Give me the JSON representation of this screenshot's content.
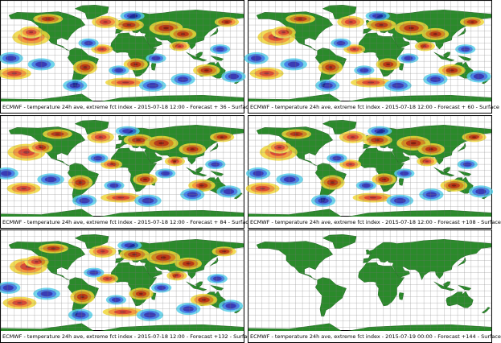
{
  "colors": {
    "land": "#2a8a2a",
    "ocean": "#ffffff",
    "grid": "#777777",
    "warm_weak": "#f0d83a",
    "warm_mid": "#f08a1e",
    "warm_strong": "#d42a12",
    "warm_extreme": "#8a0f0f",
    "cold_weak": "#58d0ea",
    "cold_mid": "#2a6ee6",
    "cold_strong": "#1a1aa8"
  },
  "panels": [
    {
      "caption": "ECMWF - temperature 24h ave, extreme fct index - 2015-07-18 12:00 - Forecast + 36 - Surface",
      "has_anomaly": true
    },
    {
      "caption": "ECMWF - temperature 24h ave, extreme fct index - 2015-07-18 12:00 - Forecast + 60 - Surface",
      "has_anomaly": true
    },
    {
      "caption": "ECMWF - temperature 24h ave, extreme fct index - 2015-07-18 12:00 - Forecast + 84 - Surface",
      "has_anomaly": true
    },
    {
      "caption": "ECMWF - temperature 24h ave, extreme fct index - 2015-07-18 12:00 - Forecast +108 - Surface",
      "has_anomaly": true
    },
    {
      "caption": "ECMWF - temperature 24h ave, extreme fct index - 2015-07-18 12:00 - Forecast +132 - Surface",
      "has_anomaly": true
    },
    {
      "caption": "ECMWF - temperature 24h ave, extreme fct index - 2015-07-19 00:00 - Forecast +144 - Surface",
      "has_anomaly": false
    }
  ]
}
